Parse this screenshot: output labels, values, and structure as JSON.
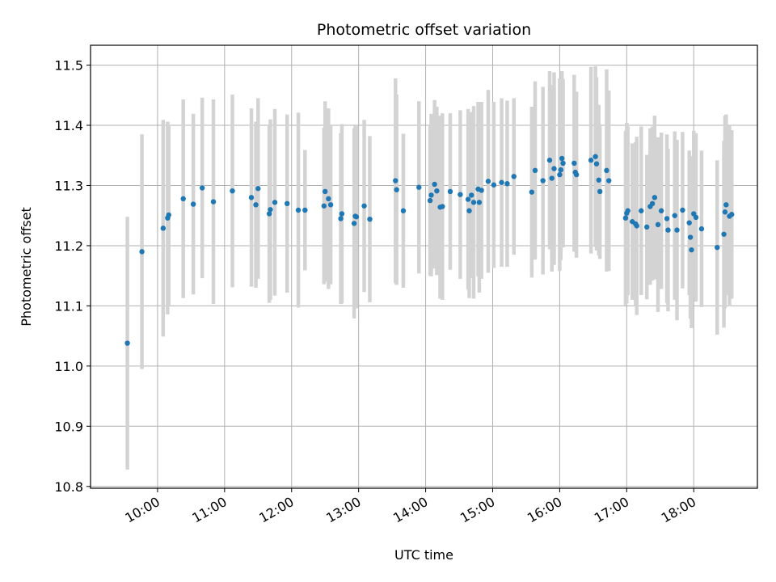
{
  "chart_data": {
    "type": "scatter",
    "title": "Photometric offset variation",
    "xlabel": "UTC time",
    "ylabel": "Photometric offset",
    "grid": true,
    "legend": "none",
    "xlim": [
      "09:00",
      "18:57"
    ],
    "ylim": [
      10.797,
      11.533
    ],
    "x_ticks": [
      "10:00",
      "11:00",
      "12:00",
      "13:00",
      "14:00",
      "15:00",
      "16:00",
      "17:00",
      "18:00"
    ],
    "y_ticks": [
      "10.8",
      "10.9",
      "11.0",
      "11.1",
      "11.2",
      "11.3",
      "11.4",
      "11.5"
    ],
    "colors": {
      "points": "#1f77b4",
      "error_bars": "#d3d3d3",
      "grid": "#b0b0b0"
    },
    "series": [
      {
        "x": [
          "09:33",
          "09:46",
          "10:05",
          "10:09",
          "10:10",
          "10:23",
          "10:32",
          "10:40",
          "10:50",
          "11:07",
          "11:24",
          "11:28",
          "11:30",
          "11:40",
          "11:41",
          "11:45",
          "11:56",
          "12:06",
          "12:12",
          "12:29",
          "12:30",
          "12:33",
          "12:35",
          "12:44",
          "12:45",
          "12:56",
          "12:57",
          "12:58",
          "13:05",
          "13:10",
          "13:33",
          "13:34",
          "13:40",
          "13:54",
          "14:04",
          "14:05",
          "14:08",
          "14:10",
          "14:13",
          "14:15",
          "14:22",
          "14:31",
          "14:38",
          "14:39",
          "14:41",
          "14:43",
          "14:47",
          "14:48",
          "14:50",
          "14:56",
          "15:01",
          "15:08",
          "15:13",
          "15:19",
          "15:35",
          "15:38",
          "15:45",
          "15:51",
          "15:53",
          "15:55",
          "16:00",
          "16:01",
          "16:02",
          "16:03",
          "16:13",
          "16:14",
          "16:15",
          "16:28",
          "16:32",
          "16:33",
          "16:35",
          "16:36",
          "16:42",
          "16:44",
          "16:59",
          "17:00",
          "17:01",
          "17:05",
          "17:08",
          "17:09",
          "17:13",
          "17:18",
          "17:21",
          "17:23",
          "17:25",
          "17:28",
          "17:31",
          "17:36",
          "17:37",
          "17:43",
          "17:45",
          "17:50",
          "17:56",
          "17:57",
          "17:58",
          "18:00",
          "18:02",
          "18:07",
          "18:21",
          "18:27",
          "18:28",
          "18:29",
          "18:32",
          "18:34"
        ],
        "y": [
          11.038,
          11.19,
          11.229,
          11.246,
          11.251,
          11.278,
          11.269,
          11.296,
          11.273,
          11.291,
          11.28,
          11.268,
          11.295,
          11.253,
          11.26,
          11.272,
          11.27,
          11.259,
          11.259,
          11.266,
          11.29,
          11.278,
          11.268,
          11.245,
          11.253,
          11.237,
          11.249,
          11.248,
          11.266,
          11.244,
          11.308,
          11.293,
          11.258,
          11.297,
          11.275,
          11.284,
          11.302,
          11.291,
          11.264,
          11.265,
          11.29,
          11.285,
          11.277,
          11.258,
          11.284,
          11.272,
          11.294,
          11.272,
          11.292,
          11.307,
          11.301,
          11.305,
          11.303,
          11.315,
          11.289,
          11.325,
          11.308,
          11.342,
          11.312,
          11.328,
          11.318,
          11.326,
          11.345,
          11.337,
          11.337,
          11.322,
          11.318,
          11.342,
          11.348,
          11.336,
          11.309,
          11.29,
          11.325,
          11.308,
          11.246,
          11.254,
          11.258,
          11.24,
          11.236,
          11.233,
          11.258,
          11.231,
          11.265,
          11.27,
          11.28,
          11.235,
          11.258,
          11.245,
          11.226,
          11.25,
          11.226,
          11.259,
          11.238,
          11.214,
          11.193,
          11.253,
          11.247,
          11.228,
          11.197,
          11.219,
          11.256,
          11.268,
          11.249,
          11.252
        ],
        "err": [
          0.21,
          0.195,
          0.18,
          0.16,
          0.15,
          0.165,
          0.15,
          0.15,
          0.17,
          0.16,
          0.148,
          0.138,
          0.15,
          0.148,
          0.15,
          0.155,
          0.148,
          0.162,
          0.1,
          0.13,
          0.15,
          0.15,
          0.132,
          0.142,
          0.149,
          0.158,
          0.15,
          0.152,
          0.143,
          0.138,
          0.17,
          0.158,
          0.128,
          0.143,
          0.125,
          0.135,
          0.14,
          0.14,
          0.152,
          0.155,
          0.13,
          0.14,
          0.15,
          0.145,
          0.138,
          0.16,
          0.145,
          0.15,
          0.147,
          0.152,
          0.138,
          0.14,
          0.138,
          0.13,
          0.142,
          0.148,
          0.156,
          0.148,
          0.155,
          0.16,
          0.16,
          0.15,
          0.145,
          0.14,
          0.147,
          0.132,
          0.138,
          0.155,
          0.15,
          0.144,
          0.125,
          0.112,
          0.168,
          0.15,
          0.145,
          0.15,
          0.14,
          0.13,
          0.136,
          0.148,
          0.14,
          0.12,
          0.13,
          0.128,
          0.136,
          0.145,
          0.13,
          0.14,
          0.135,
          0.14,
          0.15,
          0.13,
          0.12,
          0.135,
          0.13,
          0.138,
          0.14,
          0.13,
          0.145,
          0.155,
          0.16,
          0.15,
          0.15,
          0.14
        ]
      }
    ]
  }
}
